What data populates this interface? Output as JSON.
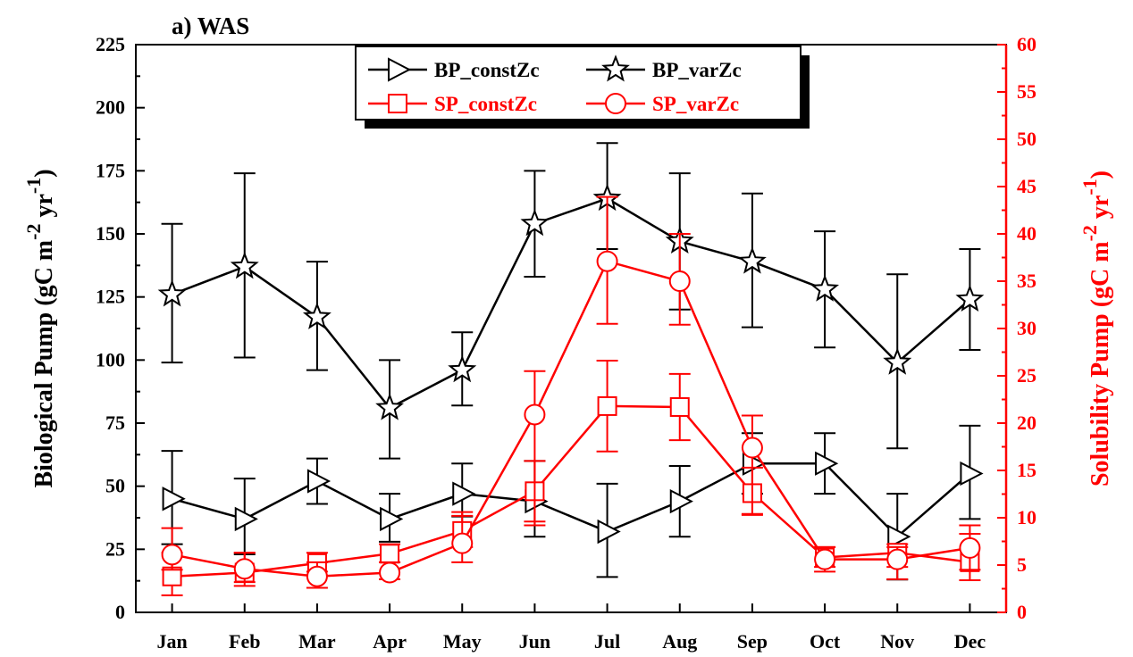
{
  "chart_data": {
    "type": "line",
    "title": "a) WAS",
    "categories": [
      "Jan",
      "Feb",
      "Mar",
      "Apr",
      "May",
      "Jun",
      "Jul",
      "Aug",
      "Sep",
      "Oct",
      "Nov",
      "Dec"
    ],
    "y_left": {
      "label": "Biological Pump (gC m-2 yr-1)",
      "label_parts": [
        "Biological Pump (gC m",
        "-2",
        " yr",
        "-1",
        ")"
      ],
      "range": [
        0,
        225
      ],
      "ticks": [
        0,
        25,
        50,
        75,
        100,
        125,
        150,
        175,
        200,
        225
      ]
    },
    "y_right": {
      "label": "Solubility Pump (gC m-2 yr-1)",
      "label_parts": [
        "Solubility Pump (gC m",
        "-2",
        " yr",
        "-1",
        ")"
      ],
      "range": [
        0,
        60
      ],
      "ticks": [
        0,
        5,
        10,
        15,
        20,
        25,
        30,
        35,
        40,
        45,
        50,
        55,
        60
      ],
      "color": "#ff0000"
    },
    "legend_position": "top-center",
    "series": [
      {
        "name": "BP_constZc",
        "axis": "left",
        "color": "#000000",
        "marker": "triangle-right",
        "values": [
          45,
          37,
          52,
          37,
          47,
          44,
          32,
          44,
          59,
          59,
          30,
          55
        ],
        "err_low": [
          27,
          23,
          43,
          28,
          38,
          30,
          14,
          30,
          47,
          47,
          13,
          37
        ],
        "err_high": [
          64,
          53,
          61,
          47,
          59,
          60,
          51,
          58,
          71,
          71,
          47,
          74
        ]
      },
      {
        "name": "BP_varZc",
        "axis": "left",
        "color": "#000000",
        "marker": "star",
        "values": [
          126,
          137,
          117,
          81,
          96,
          154,
          164,
          147,
          139,
          128,
          99,
          124
        ],
        "err_low": [
          99,
          101,
          96,
          61,
          82,
          133,
          144,
          120,
          113,
          105,
          65,
          104
        ],
        "err_high": [
          154,
          174,
          139,
          100,
          111,
          175,
          186,
          174,
          166,
          151,
          134,
          144
        ]
      },
      {
        "name": "SP_constZc",
        "axis": "right",
        "color": "#ff0000",
        "marker": "square",
        "values": [
          3.8,
          4.2,
          5.2,
          6.2,
          8.6,
          12.8,
          21.8,
          21.7,
          12.6,
          5.8,
          6.3,
          5.3
        ],
        "err_low": [
          1.8,
          2.8,
          4.3,
          5.3,
          6.9,
          9.6,
          17.0,
          18.2,
          10.3,
          4.8,
          4.8,
          3.4
        ],
        "err_high": [
          6.3,
          6.3,
          6.3,
          7.2,
          10.2,
          16.0,
          26.6,
          25.2,
          15.3,
          6.9,
          7.2,
          8.3
        ]
      },
      {
        "name": "SP_varZc",
        "axis": "right",
        "color": "#ff0000",
        "marker": "circle",
        "values": [
          6.1,
          4.6,
          3.8,
          4.2,
          7.3,
          20.9,
          37.1,
          35.0,
          17.4,
          5.6,
          5.6,
          6.8
        ],
        "err_low": [
          4.5,
          3.2,
          2.6,
          3.5,
          5.3,
          9.2,
          30.5,
          30.4,
          10.4,
          4.3,
          3.5,
          4.5
        ],
        "err_high": [
          8.9,
          6.3,
          5.3,
          5.3,
          10.6,
          25.5,
          43.9,
          40.0,
          20.8,
          6.9,
          6.9,
          9.2
        ]
      }
    ]
  }
}
